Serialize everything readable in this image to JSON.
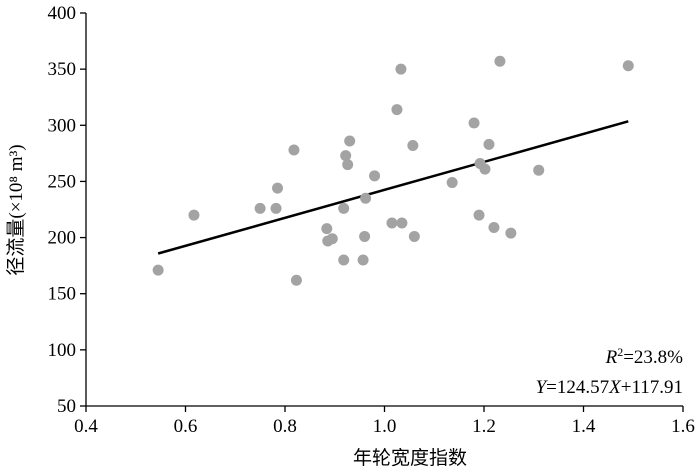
{
  "chart_data": {
    "type": "scatter",
    "xlabel": "年轮宽度指数",
    "ylabel": "径流量(×10⁸ m³)",
    "color": "#a3a3a3",
    "line_color": "#000000",
    "x": [
      0.545,
      0.617,
      0.75,
      0.782,
      0.785,
      0.818,
      0.823,
      0.884,
      0.886,
      0.895,
      0.918,
      0.918,
      0.922,
      0.926,
      0.93,
      0.957,
      0.96,
      0.962,
      0.98,
      1.015,
      1.025,
      1.033,
      1.035,
      1.057,
      1.06,
      1.136,
      1.18,
      1.19,
      1.192,
      1.202,
      1.21,
      1.22,
      1.232,
      1.254,
      1.31,
      1.49
    ],
    "values": [
      171,
      220,
      226,
      226,
      244,
      278,
      162,
      208,
      197,
      199,
      226,
      180,
      273,
      265,
      286,
      180,
      201,
      235,
      255,
      213,
      314,
      350,
      213,
      282,
      201,
      249,
      302,
      220,
      266,
      261,
      283,
      209,
      357,
      204,
      260,
      353
    ],
    "fit": {
      "slope": 124.57,
      "intercept": 117.91
    },
    "annotations": {
      "r2": [
        "R",
        "2",
        "=23.8%"
      ],
      "equation": [
        "Y",
        "=124.57",
        "X",
        "+117.91"
      ]
    },
    "xlim": [
      0.4,
      1.6
    ],
    "ylim": [
      50,
      400
    ],
    "xticks": [
      0.4,
      0.6,
      0.8,
      {
        "value": 1,
        "label": "1.0"
      },
      1.2,
      1.4,
      1.6
    ],
    "yticks": [
      50,
      100,
      150,
      200,
      250,
      300,
      350,
      400
    ]
  }
}
